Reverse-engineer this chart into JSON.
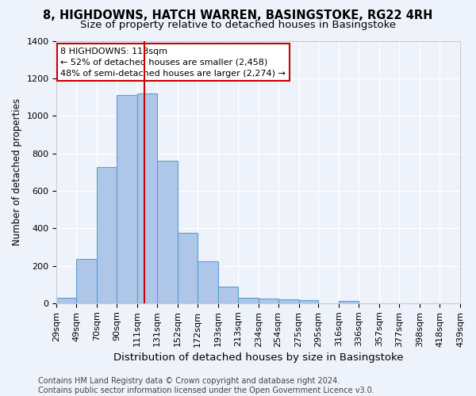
{
  "title1": "8, HIGHDOWNS, HATCH WARREN, BASINGSTOKE, RG22 4RH",
  "title2": "Size of property relative to detached houses in Basingstoke",
  "xlabel": "Distribution of detached houses by size in Basingstoke",
  "ylabel": "Number of detached properties",
  "annotation_line1": "8 HIGHDOWNS: 118sqm",
  "annotation_line2": "← 52% of detached houses are smaller (2,458)",
  "annotation_line3": "48% of semi-detached houses are larger (2,274) →",
  "marker_value": 118,
  "bin_edges": [
    29,
    49,
    70,
    90,
    111,
    131,
    152,
    172,
    193,
    213,
    234,
    254,
    275,
    295,
    316,
    336,
    357,
    377,
    398,
    418,
    439
  ],
  "bar_heights": [
    30,
    235,
    725,
    1110,
    1120,
    760,
    375,
    225,
    90,
    30,
    25,
    20,
    15,
    0,
    10,
    0,
    0,
    0,
    0,
    0
  ],
  "bar_color": "#aec6e8",
  "bar_edge_color": "#5a9fd4",
  "marker_color": "#cc0000",
  "background_color": "#eef2fb",
  "grid_color": "#ffffff",
  "annotation_box_color": "#ffffff",
  "annotation_box_edge": "#cc0000",
  "footer_line1": "Contains HM Land Registry data © Crown copyright and database right 2024.",
  "footer_line2": "Contains public sector information licensed under the Open Government Licence v3.0.",
  "ylim": [
    0,
    1400
  ],
  "yticks": [
    0,
    200,
    400,
    600,
    800,
    1000,
    1200,
    1400
  ],
  "title1_fontsize": 10.5,
  "title2_fontsize": 9.5,
  "xlabel_fontsize": 9.5,
  "ylabel_fontsize": 8.5,
  "tick_fontsize": 8,
  "footer_fontsize": 7,
  "annot_fontsize": 8
}
